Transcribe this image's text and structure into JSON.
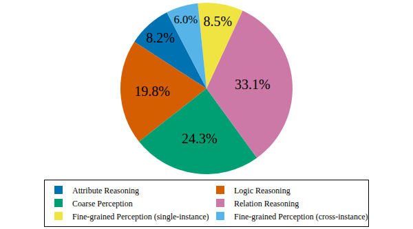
{
  "chart_data": {
    "type": "pie",
    "categories": [
      "Attribute Reasoning",
      "Logic Reasoning",
      "Coarse Perception",
      "Relation Reasoning",
      "Fine-grained Perception (single-instance)",
      "Fine-grained Perception (cross-instance)"
    ],
    "values": [
      8.2,
      19.8,
      24.3,
      33.1,
      8.5,
      6.0
    ],
    "value_labels": [
      "8.2%",
      "19.8%",
      "24.3%",
      "33.1%",
      "8.5%",
      "6.0%"
    ],
    "colors": [
      "#0072B2",
      "#D55E00",
      "#009E73",
      "#CC79A7",
      "#F0E442",
      "#56B4E9"
    ],
    "data_labels": true,
    "legend": "bottom"
  }
}
